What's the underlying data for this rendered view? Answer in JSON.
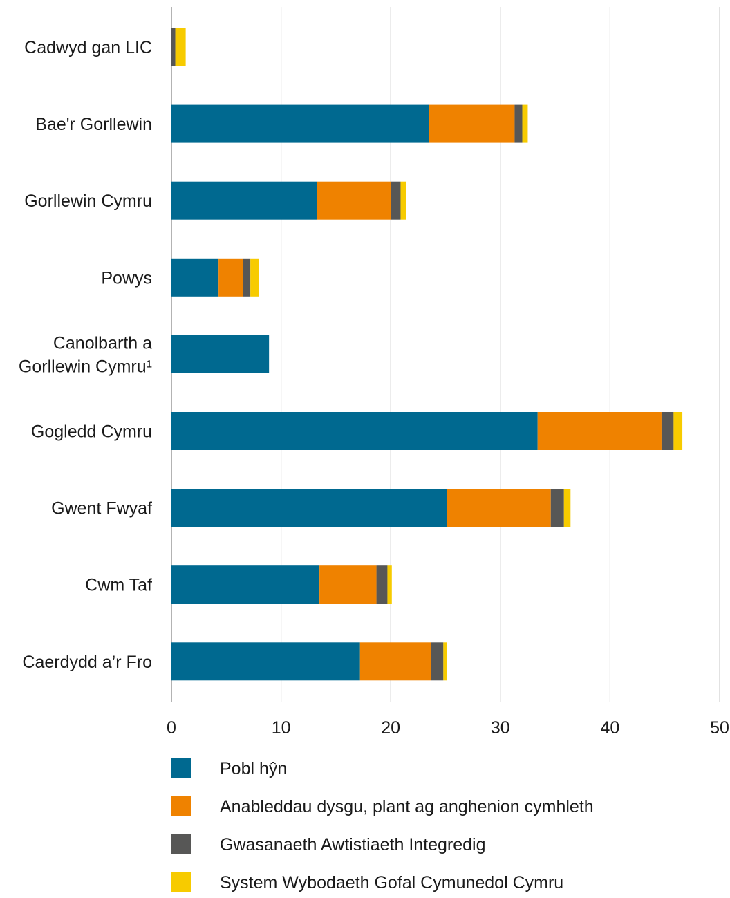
{
  "chart_data": {
    "type": "bar",
    "orientation": "horizontal",
    "stacked": true,
    "categories": [
      "Cadwyd gan LIC",
      "Bae'r Gorllewin",
      "Gorllewin Cymru",
      "Powys",
      "Canolbarth a Gorllewin Cymru¹",
      "Gogledd Cymru",
      "Gwent Fwyaf",
      "Cwm Taf",
      "Caerdydd a’r Fro"
    ],
    "category_lines": [
      [
        "Cadwyd gan LIC"
      ],
      [
        "Bae'r Gorllewin"
      ],
      [
        "Gorllewin Cymru"
      ],
      [
        "Powys"
      ],
      [
        "Canolbarth a",
        "Gorllewin Cymru¹"
      ],
      [
        "Gogledd Cymru"
      ],
      [
        "Gwent Fwyaf"
      ],
      [
        "Cwm Taf"
      ],
      [
        "Caerdydd a’r Fro"
      ]
    ],
    "series": [
      {
        "name": "Pobl hŷn",
        "color": "#006990",
        "values": [
          0,
          23.5,
          13.3,
          4.3,
          8.9,
          33.4,
          25.1,
          13.5,
          17.2
        ]
      },
      {
        "name": "Anableddau dysgu, plant ag anghenion cymhleth",
        "color": "#ef8200",
        "values": [
          0,
          7.8,
          6.7,
          2.2,
          0,
          11.3,
          9.5,
          5.2,
          6.5
        ]
      },
      {
        "name": "Gwasanaeth Awtistiaeth Integredig",
        "color": "#575756",
        "values": [
          0.35,
          0.7,
          0.9,
          0.7,
          0,
          1.1,
          1.2,
          1.0,
          1.1
        ]
      },
      {
        "name": "System Wybodaeth Gofal Cymunedol Cymru",
        "color": "#f7cb00",
        "values": [
          0.95,
          0.5,
          0.5,
          0.8,
          0,
          0.8,
          0.6,
          0.4,
          0.3
        ]
      }
    ],
    "x_ticks": [
      "0",
      "10",
      "20",
      "30",
      "40",
      "50"
    ],
    "xlim": [
      0,
      50
    ],
    "grid": true,
    "legend_position": "bottom",
    "title": "",
    "xlabel": "",
    "ylabel": ""
  }
}
